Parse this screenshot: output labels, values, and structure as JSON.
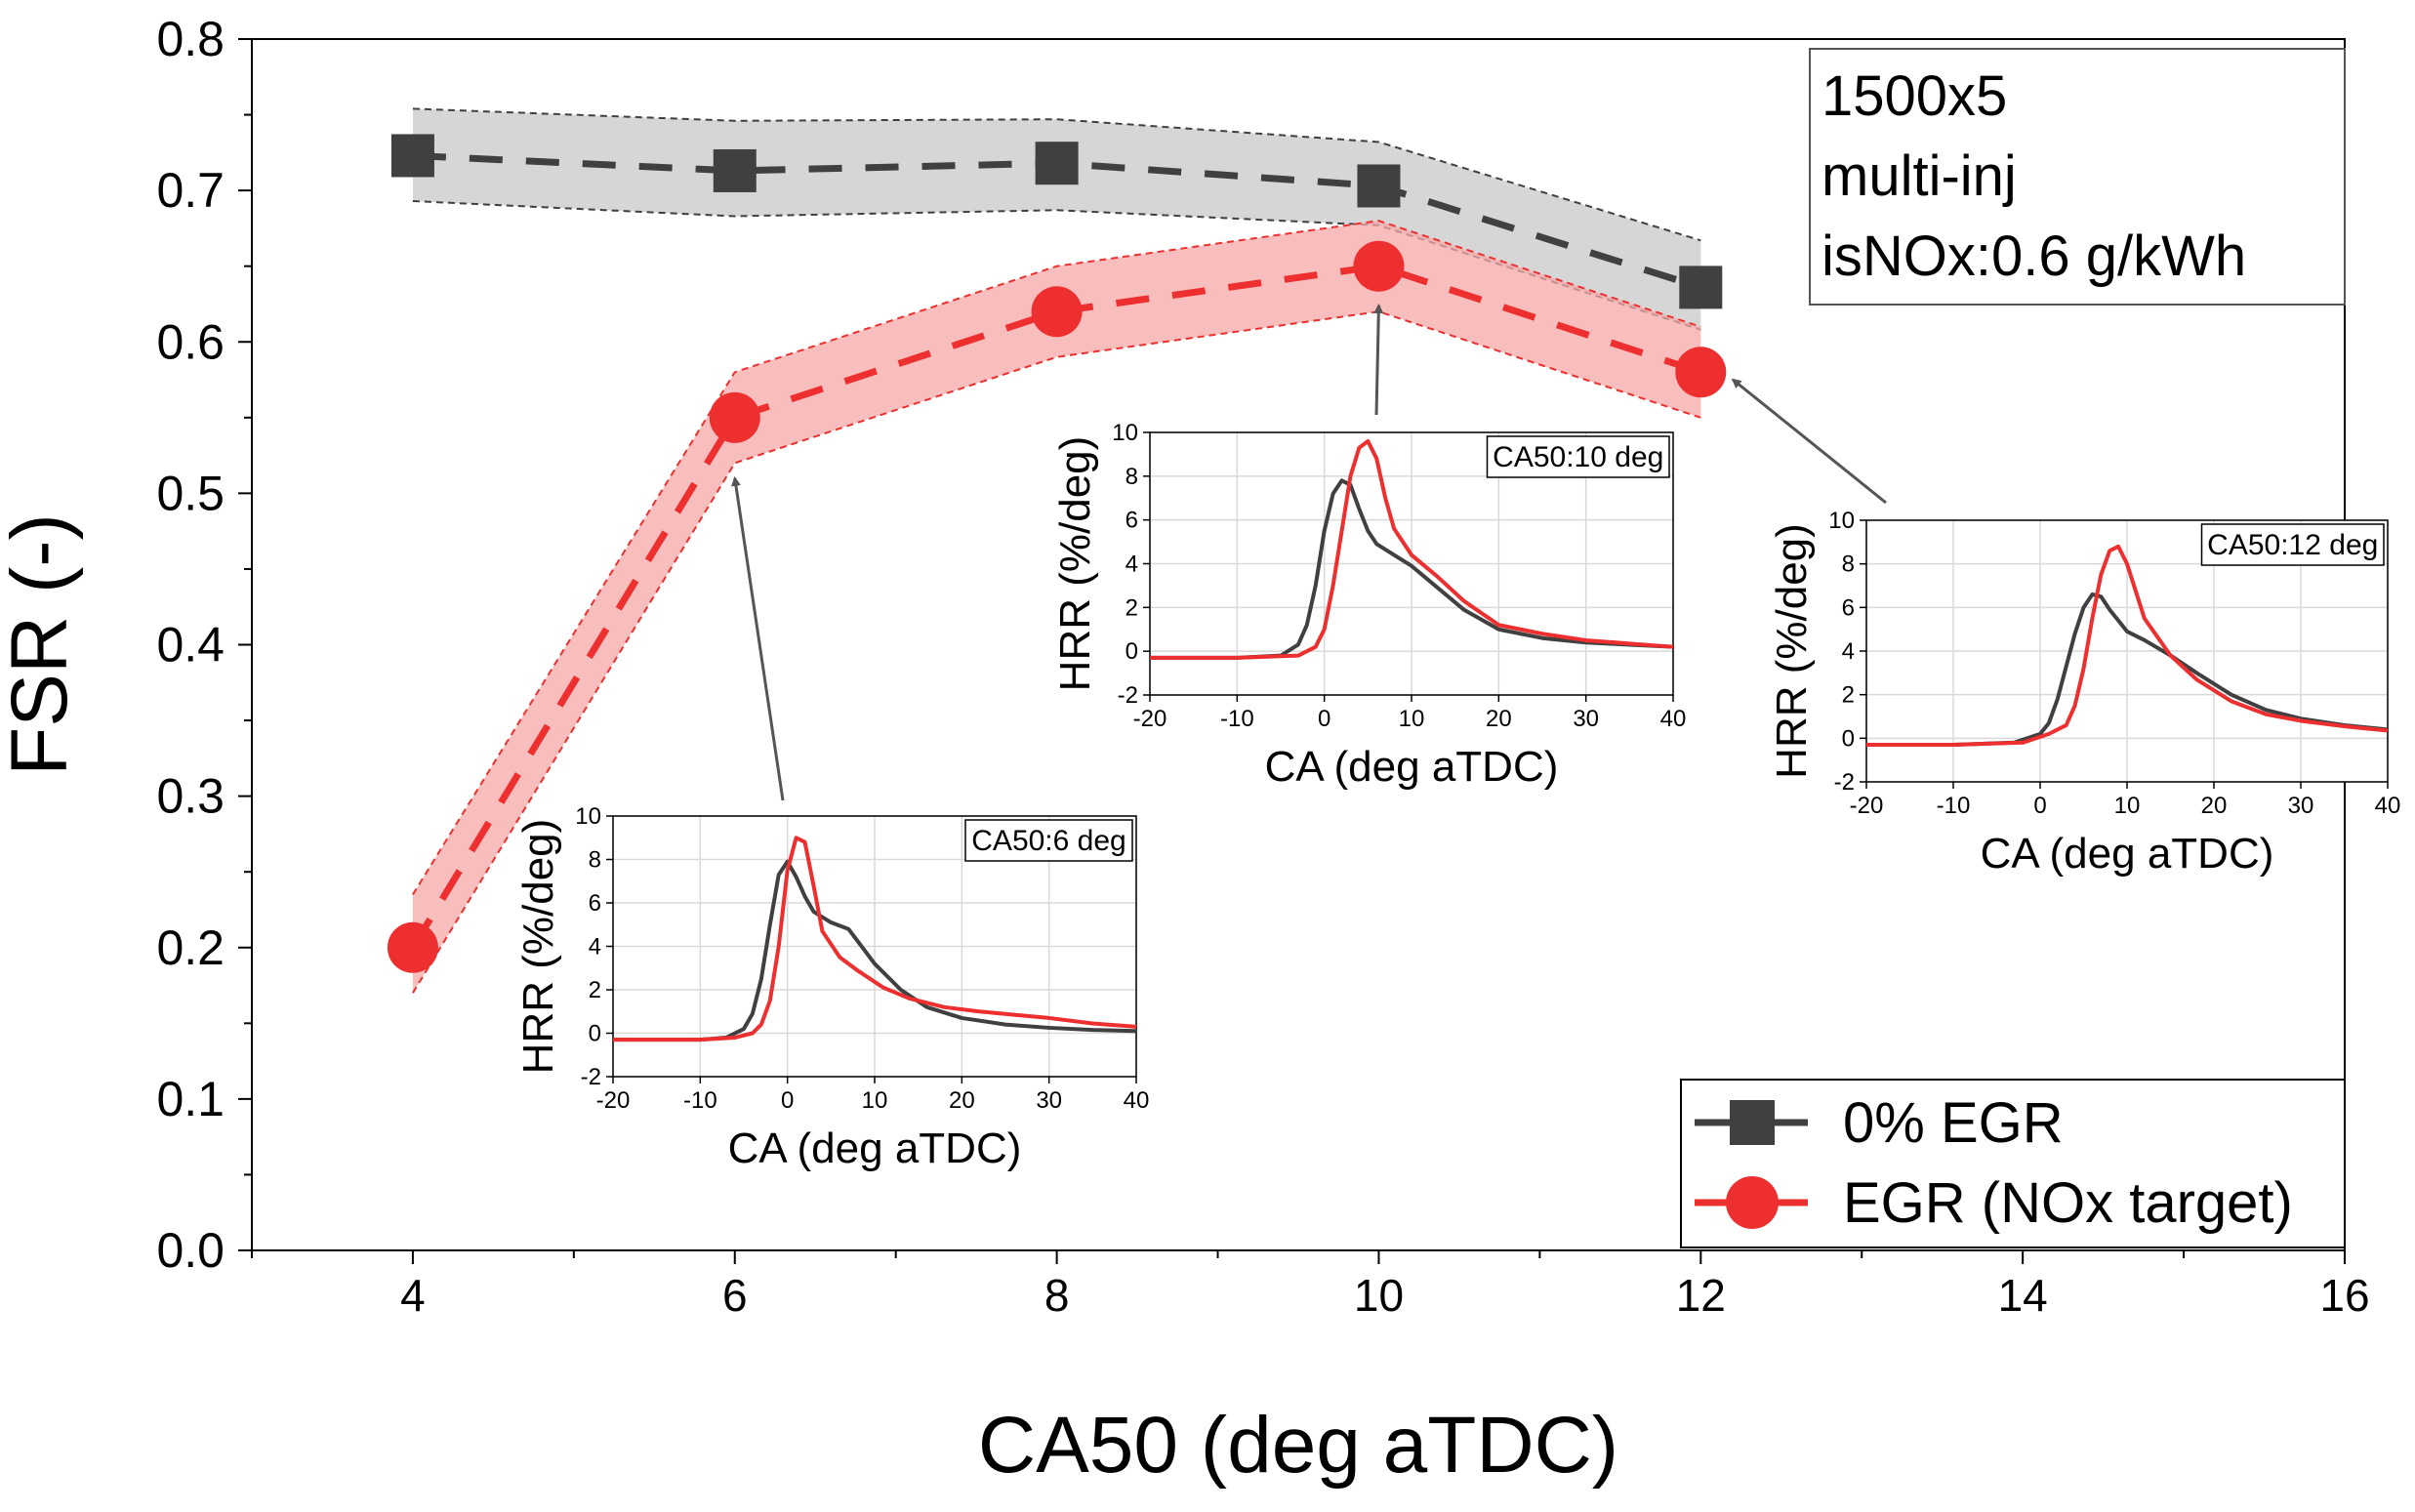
{
  "chart_data": {
    "type": "line",
    "title": "",
    "xlabel": "CA50 (deg aTDC)",
    "ylabel": "FSR (-)",
    "xlim": [
      3,
      16
    ],
    "ylim": [
      0.0,
      0.8
    ],
    "xticks": [
      4,
      6,
      8,
      10,
      12,
      14,
      16
    ],
    "yticks": [
      0.0,
      0.1,
      0.2,
      0.3,
      0.4,
      0.5,
      0.6,
      0.7,
      0.8
    ],
    "xtick_labels": [
      "4",
      "6",
      "8",
      "10",
      "12",
      "14",
      "16"
    ],
    "ytick_labels": [
      "0.0",
      "0.1",
      "0.2",
      "0.3",
      "0.4",
      "0.5",
      "0.6",
      "0.7",
      "0.8"
    ],
    "annotation_box": [
      "1500x5",
      "multi-inj",
      "isNOx:0.6 g/kWh"
    ],
    "legend_position": "bottom-right",
    "series": [
      {
        "name": "0% EGR",
        "color": "#404040",
        "band_color": "#c8c8c8",
        "marker": "square",
        "x": [
          4,
          6,
          8,
          10,
          12
        ],
        "y": [
          0.723,
          0.713,
          0.718,
          0.703,
          0.636
        ],
        "band_upper": [
          0.754,
          0.746,
          0.747,
          0.732,
          0.667
        ],
        "band_lower": [
          0.693,
          0.683,
          0.687,
          0.677,
          0.608
        ]
      },
      {
        "name": "EGR (NOx target)",
        "color": "#ed2f2f",
        "band_color": "#f5a7a7",
        "marker": "circle",
        "x": [
          4,
          6,
          8,
          10,
          12
        ],
        "y": [
          0.2,
          0.55,
          0.62,
          0.65,
          0.58
        ],
        "band_upper": [
          0.235,
          0.58,
          0.65,
          0.68,
          0.61
        ],
        "band_lower": [
          0.17,
          0.52,
          0.59,
          0.62,
          0.55
        ]
      }
    ],
    "insets": [
      {
        "label": "CA50:6 deg",
        "points_to_x": 6,
        "xlabel": "CA (deg aTDC)",
        "ylabel": "HRR (%/deg)",
        "xlim": [
          -20,
          40
        ],
        "ylim": [
          -2,
          10
        ],
        "xticks": [
          -20,
          -10,
          0,
          10,
          20,
          30,
          40
        ],
        "yticks": [
          -2,
          0,
          2,
          4,
          6,
          8,
          10
        ],
        "series": [
          {
            "name": "0% EGR",
            "color": "#404040",
            "x": [
              -20,
              -10,
              -7,
              -5,
              -4,
              -3,
              -2,
              -1,
              0,
              1,
              2,
              3,
              5,
              7,
              10,
              13,
              16,
              20,
              25,
              30,
              35,
              40
            ],
            "y": [
              -0.3,
              -0.3,
              -0.2,
              0.2,
              0.9,
              2.5,
              5.0,
              7.3,
              7.9,
              7.2,
              6.3,
              5.6,
              5.1,
              4.8,
              3.2,
              2.0,
              1.2,
              0.7,
              0.4,
              0.25,
              0.15,
              0.1
            ]
          },
          {
            "name": "EGR (NOx target)",
            "color": "#ed2f2f",
            "x": [
              -20,
              -10,
              -6,
              -4,
              -3,
              -2,
              -1,
              0,
              1,
              2,
              3,
              4,
              6,
              8,
              11,
              14,
              18,
              22,
              26,
              30,
              35,
              40
            ],
            "y": [
              -0.3,
              -0.3,
              -0.2,
              0.0,
              0.4,
              1.5,
              4.0,
              7.5,
              9.0,
              8.8,
              6.8,
              4.7,
              3.5,
              2.9,
              2.1,
              1.6,
              1.2,
              1.0,
              0.85,
              0.7,
              0.45,
              0.3
            ]
          }
        ]
      },
      {
        "label": "CA50:10 deg",
        "points_to_x": 10,
        "xlabel": "CA (deg aTDC)",
        "ylabel": "HRR (%/deg)",
        "xlim": [
          -20,
          40
        ],
        "ylim": [
          -2,
          10
        ],
        "xticks": [
          -20,
          -10,
          0,
          10,
          20,
          30,
          40
        ],
        "yticks": [
          -2,
          0,
          2,
          4,
          6,
          8,
          10
        ],
        "series": [
          {
            "name": "0% EGR",
            "color": "#404040",
            "x": [
              -20,
              -10,
              -5,
              -3,
              -2,
              -1,
              0,
              1,
              2,
              3,
              4,
              5,
              6,
              8,
              10,
              13,
              16,
              20,
              25,
              30,
              35,
              40
            ],
            "y": [
              -0.3,
              -0.3,
              -0.2,
              0.3,
              1.2,
              3.0,
              5.5,
              7.2,
              7.8,
              7.6,
              6.5,
              5.5,
              4.9,
              4.4,
              3.9,
              2.9,
              1.9,
              1.0,
              0.6,
              0.4,
              0.3,
              0.2
            ]
          },
          {
            "name": "EGR (NOx target)",
            "color": "#ed2f2f",
            "x": [
              -20,
              -10,
              -3,
              -1,
              0,
              1,
              2,
              3,
              4,
              5,
              6,
              7,
              8,
              10,
              13,
              16,
              20,
              25,
              30,
              35,
              40
            ],
            "y": [
              -0.3,
              -0.3,
              -0.2,
              0.2,
              1.0,
              3.0,
              5.5,
              8.0,
              9.3,
              9.6,
              8.8,
              7.0,
              5.6,
              4.4,
              3.4,
              2.3,
              1.2,
              0.8,
              0.5,
              0.35,
              0.2
            ]
          }
        ]
      },
      {
        "label": "CA50:12 deg",
        "points_to_x": 12,
        "xlabel": "CA (deg aTDC)",
        "ylabel": "HRR (%/deg)",
        "xlim": [
          -20,
          40
        ],
        "ylim": [
          -2,
          10
        ],
        "xticks": [
          -20,
          -10,
          0,
          10,
          20,
          30,
          40
        ],
        "yticks": [
          -2,
          0,
          2,
          4,
          6,
          8,
          10
        ],
        "series": [
          {
            "name": "0% EGR",
            "color": "#404040",
            "x": [
              -20,
              -10,
              -3,
              0,
              1,
              2,
              3,
              4,
              5,
              6,
              7,
              8,
              10,
              12,
              15,
              18,
              22,
              26,
              30,
              35,
              40
            ],
            "y": [
              -0.3,
              -0.3,
              -0.2,
              0.2,
              0.7,
              1.8,
              3.3,
              4.8,
              6.0,
              6.6,
              6.5,
              5.9,
              4.9,
              4.5,
              3.8,
              3.0,
              2.0,
              1.3,
              0.9,
              0.6,
              0.4
            ]
          },
          {
            "name": "EGR (NOx target)",
            "color": "#ed2f2f",
            "x": [
              -20,
              -10,
              -2,
              1,
              3,
              4,
              5,
              6,
              7,
              8,
              9,
              10,
              12,
              15,
              18,
              22,
              26,
              30,
              35,
              40
            ],
            "y": [
              -0.3,
              -0.3,
              -0.2,
              0.2,
              0.6,
              1.5,
              3.2,
              5.5,
              7.5,
              8.6,
              8.8,
              8.0,
              5.5,
              3.8,
              2.7,
              1.7,
              1.1,
              0.8,
              0.55,
              0.35
            ]
          }
        ]
      }
    ]
  }
}
